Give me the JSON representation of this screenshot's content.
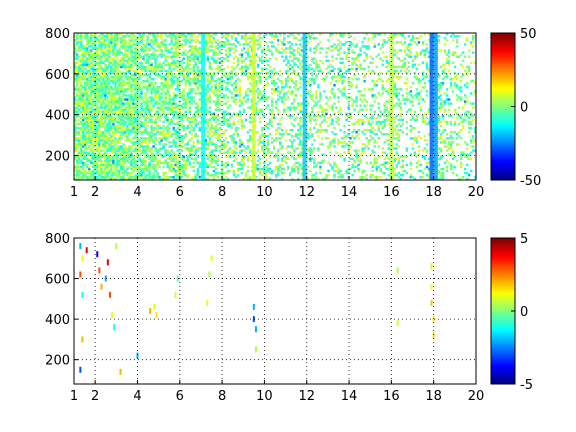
{
  "chart_data": [
    {
      "type": "heatmap",
      "title": "",
      "xlabel": "",
      "ylabel": "",
      "xlim": [
        1,
        20
      ],
      "ylim": [
        80,
        800
      ],
      "xticks": [
        1,
        2,
        4,
        6,
        8,
        10,
        12,
        14,
        16,
        18,
        20
      ],
      "yticks": [
        200,
        400,
        600,
        800
      ],
      "grid": true,
      "colorbar": {
        "lim": [
          -50,
          50
        ],
        "ticks": [
          -50,
          0,
          50
        ]
      },
      "density_profile": [
        {
          "x": 1,
          "density": 0.75
        },
        {
          "x": 2,
          "density": 0.8
        },
        {
          "x": 3,
          "density": 0.75
        },
        {
          "x": 4,
          "density": 0.65
        },
        {
          "x": 5,
          "density": 0.55
        },
        {
          "x": 6,
          "density": 0.5
        },
        {
          "x": 8,
          "density": 0.38
        },
        {
          "x": 10,
          "density": 0.33
        },
        {
          "x": 12,
          "density": 0.28
        },
        {
          "x": 14,
          "density": 0.25
        },
        {
          "x": 16,
          "density": 0.28
        },
        {
          "x": 18,
          "density": 0.25
        },
        {
          "x": 20,
          "density": 0.2
        }
      ],
      "stripes": [
        {
          "x": 7.1,
          "value": -12
        },
        {
          "x": 9.5,
          "value": 8
        },
        {
          "x": 11.9,
          "value": -18
        },
        {
          "x": 16.0,
          "value": 6
        },
        {
          "x": 17.9,
          "value": -28
        },
        {
          "x": 18.1,
          "value": -22
        }
      ]
    },
    {
      "type": "heatmap",
      "title": "",
      "xlabel": "",
      "ylabel": "",
      "xlim": [
        1,
        20
      ],
      "ylim": [
        80,
        800
      ],
      "xticks": [
        1,
        2,
        4,
        6,
        8,
        10,
        12,
        14,
        16,
        18,
        20
      ],
      "yticks": [
        200,
        400,
        600,
        800
      ],
      "grid": true,
      "colorbar": {
        "lim": [
          -5,
          5
        ],
        "ticks": [
          -5,
          0,
          5
        ]
      },
      "points": [
        {
          "x": 1.3,
          "y": 760,
          "value": -2
        },
        {
          "x": 1.3,
          "y": 620,
          "value": 3
        },
        {
          "x": 1.4,
          "y": 700,
          "value": 1
        },
        {
          "x": 1.4,
          "y": 520,
          "value": -1
        },
        {
          "x": 1.4,
          "y": 300,
          "value": 2
        },
        {
          "x": 1.3,
          "y": 150,
          "value": -3
        },
        {
          "x": 1.6,
          "y": 740,
          "value": 4
        },
        {
          "x": 2.1,
          "y": 720,
          "value": -4
        },
        {
          "x": 2.2,
          "y": 640,
          "value": 3
        },
        {
          "x": 2.3,
          "y": 560,
          "value": 2
        },
        {
          "x": 2.5,
          "y": 600,
          "value": -2
        },
        {
          "x": 2.6,
          "y": 680,
          "value": 4
        },
        {
          "x": 2.7,
          "y": 520,
          "value": 3
        },
        {
          "x": 2.8,
          "y": 420,
          "value": 1
        },
        {
          "x": 2.9,
          "y": 360,
          "value": -1
        },
        {
          "x": 3.0,
          "y": 760,
          "value": 0.5
        },
        {
          "x": 3.2,
          "y": 140,
          "value": 2
        },
        {
          "x": 4.0,
          "y": 220,
          "value": -2
        },
        {
          "x": 4.6,
          "y": 440,
          "value": 2
        },
        {
          "x": 4.8,
          "y": 460,
          "value": 1
        },
        {
          "x": 4.9,
          "y": 420,
          "value": 1.5
        },
        {
          "x": 5.8,
          "y": 520,
          "value": 0.8
        },
        {
          "x": 5.9,
          "y": 600,
          "value": -0.5
        },
        {
          "x": 7.3,
          "y": 480,
          "value": 1
        },
        {
          "x": 7.4,
          "y": 620,
          "value": 0.5
        },
        {
          "x": 7.5,
          "y": 700,
          "value": 1
        },
        {
          "x": 9.5,
          "y": 460,
          "value": -2
        },
        {
          "x": 9.5,
          "y": 400,
          "value": -3
        },
        {
          "x": 9.6,
          "y": 350,
          "value": -2
        },
        {
          "x": 9.6,
          "y": 250,
          "value": 0.5
        },
        {
          "x": 16.3,
          "y": 380,
          "value": 1
        },
        {
          "x": 16.3,
          "y": 640,
          "value": 0.5
        },
        {
          "x": 17.9,
          "y": 660,
          "value": 1.5
        },
        {
          "x": 17.9,
          "y": 560,
          "value": 1.2
        },
        {
          "x": 17.9,
          "y": 480,
          "value": 1.8
        },
        {
          "x": 18.0,
          "y": 400,
          "value": 1.4
        },
        {
          "x": 18.0,
          "y": 320,
          "value": 1.6
        }
      ]
    }
  ]
}
